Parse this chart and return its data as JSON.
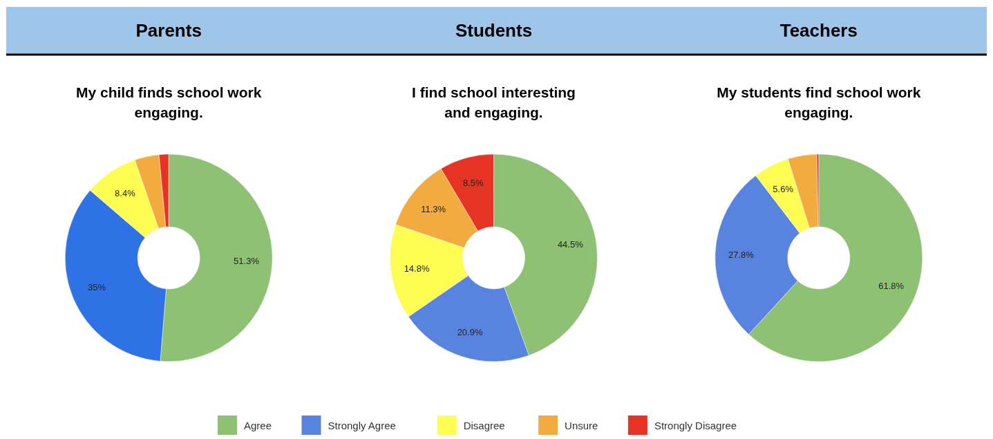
{
  "chart_data": [
    {
      "type": "donut",
      "title": "Parents",
      "subtitle": "My child finds school work engaging.",
      "categories": [
        null,
        null,
        null,
        null,
        null
      ],
      "values": [
        51.3,
        35,
        8.4,
        3.8,
        1.5
      ],
      "value_labels": [
        "51.3%",
        "35%",
        "8.4%",
        null,
        null
      ],
      "colors": [
        "#8fc175",
        "#2f72e6",
        "#fefd54",
        "#f2ab3e",
        "#e63323"
      ]
    },
    {
      "type": "donut",
      "title": "Students",
      "subtitle": "I find school interesting and engaging.",
      "categories": [
        "Agree",
        "Strongly Agree",
        "Disagree",
        "Unsure",
        "Strongly Disagree"
      ],
      "values": [
        44.5,
        20.9,
        14.8,
        11.3,
        8.5
      ],
      "value_labels": [
        "44.5%",
        "20.9%",
        "14.8%",
        "11.3%",
        "8.5%"
      ],
      "colors": [
        "#8fc175",
        "#5884e0",
        "#fefd54",
        "#f2ab3e",
        "#e63323"
      ],
      "legend": "bottom"
    },
    {
      "type": "donut",
      "title": "Teachers",
      "subtitle": "My students find school work engaging.",
      "categories": [
        null,
        null,
        null,
        null,
        null
      ],
      "values": [
        61.8,
        27.8,
        5.6,
        4.5,
        0.3
      ],
      "value_labels": [
        "61.8%",
        "27.8%",
        "5.6%",
        null,
        null
      ],
      "colors": [
        "#8fc175",
        "#5884e0",
        "#fefd54",
        "#f2ab3e",
        "#e63323"
      ]
    }
  ]
}
